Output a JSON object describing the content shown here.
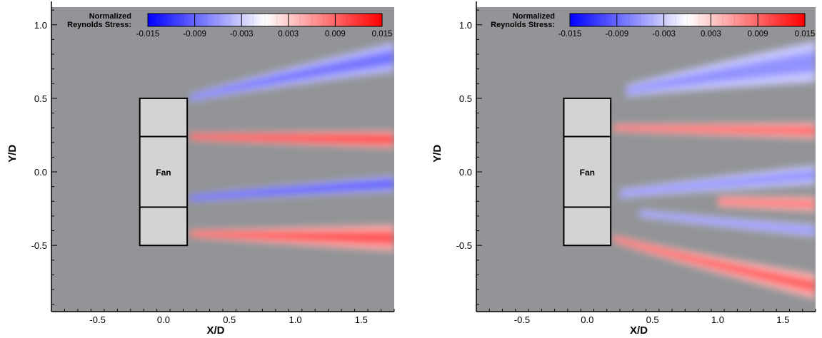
{
  "chart_data": [
    {
      "type": "heatmap",
      "title": "",
      "xlabel": "X/D",
      "ylabel": "Y/D",
      "xlim": [
        -0.85,
        1.75
      ],
      "ylim": [
        -0.95,
        1.12
      ],
      "xticks": [
        -0.5,
        0.0,
        0.5,
        1.0,
        1.5
      ],
      "yticks": [
        -0.5,
        0.0,
        0.5,
        1.0
      ],
      "xtick_labels": [
        "-0.5",
        "0.0",
        "0.5",
        "1.0",
        "1.5"
      ],
      "ytick_labels": [
        "-0.5",
        "0.0",
        "0.5",
        "1.0"
      ],
      "legend": {
        "title_lines": [
          "Normalized",
          "Reynolds Stress:"
        ],
        "placement": "top",
        "range": [
          -0.015,
          0.015
        ],
        "ticks": [
          -0.015,
          -0.009,
          -0.003,
          0.003,
          0.009,
          0.015
        ],
        "tick_labels": [
          "-0.015",
          "-0.009",
          "-0.003",
          "0.003",
          "0.009",
          "0.015"
        ],
        "colormap": [
          "#0000ff",
          "#ffffff",
          "#ff0000"
        ]
      },
      "fan": {
        "label": "Fan",
        "x_range": [
          -0.18,
          0.18
        ],
        "y_range": [
          -0.5,
          0.5
        ],
        "dividers_y": [
          -0.24,
          0.24
        ],
        "fill_color": "#d3d3d3"
      },
      "field": {
        "background_value": 0.0,
        "features": [
          {
            "value": -0.009,
            "x0": 0.2,
            "x1": 1.75,
            "y_start": 0.5,
            "y_end": 0.78,
            "width_start": 0.05,
            "width_end": 0.2
          },
          {
            "value": 0.012,
            "x0": 0.2,
            "x1": 1.75,
            "y_start": 0.24,
            "y_end": 0.22,
            "width_start": 0.05,
            "width_end": 0.12
          },
          {
            "value": -0.011,
            "x0": 0.2,
            "x1": 1.75,
            "y_start": -0.18,
            "y_end": -0.08,
            "width_start": 0.05,
            "width_end": 0.11
          },
          {
            "value": 0.011,
            "x0": 0.2,
            "x1": 1.75,
            "y_start": -0.42,
            "y_end": -0.45,
            "width_start": 0.05,
            "width_end": 0.18
          }
        ]
      }
    },
    {
      "type": "heatmap",
      "title": "",
      "xlabel": "X/D",
      "ylabel": "Y/D",
      "xlim": [
        -0.85,
        1.75
      ],
      "ylim": [
        -0.95,
        1.12
      ],
      "xticks": [
        -0.5,
        0.0,
        0.5,
        1.0,
        1.5
      ],
      "yticks": [
        -0.5,
        0.0,
        0.5,
        1.0
      ],
      "xtick_labels": [
        "-0.5",
        "0.0",
        "0.5",
        "1.0",
        "1.5"
      ],
      "ytick_labels": [
        "-0.5",
        "0.0",
        "0.5",
        "1.0"
      ],
      "legend": {
        "title_lines": [
          "Normalized",
          "Reynolds Stress:"
        ],
        "placement": "top",
        "range": [
          -0.015,
          0.015
        ],
        "ticks": [
          -0.015,
          -0.009,
          -0.003,
          0.003,
          0.009,
          0.015
        ],
        "tick_labels": [
          "-0.015",
          "-0.009",
          "-0.003",
          "0.003",
          "0.009",
          "0.015"
        ],
        "colormap": [
          "#0000ff",
          "#ffffff",
          "#ff0000"
        ]
      },
      "fan": {
        "label": "Fan",
        "x_range": [
          -0.18,
          0.18
        ],
        "y_range": [
          -0.5,
          0.5
        ],
        "dividers_y": [
          -0.24,
          0.24
        ],
        "fill_color": "#d3d3d3"
      },
      "field": {
        "background_value": 0.0,
        "features": [
          {
            "value": -0.007,
            "x0": 0.3,
            "x1": 1.75,
            "y_start": 0.55,
            "y_end": 0.75,
            "width_start": 0.08,
            "width_end": 0.28
          },
          {
            "value": 0.01,
            "x0": 0.2,
            "x1": 1.75,
            "y_start": 0.3,
            "y_end": 0.28,
            "width_start": 0.05,
            "width_end": 0.11
          },
          {
            "value": -0.007,
            "x0": 0.25,
            "x1": 1.75,
            "y_start": -0.15,
            "y_end": -0.02,
            "width_start": 0.06,
            "width_end": 0.13
          },
          {
            "value": 0.009,
            "x0": 1.0,
            "x1": 1.75,
            "y_start": -0.2,
            "y_end": -0.22,
            "width_start": 0.07,
            "width_end": 0.1
          },
          {
            "value": -0.007,
            "x0": 0.4,
            "x1": 1.75,
            "y_start": -0.28,
            "y_end": -0.4,
            "width_start": 0.05,
            "width_end": 0.08
          },
          {
            "value": 0.01,
            "x0": 0.2,
            "x1": 1.75,
            "y_start": -0.45,
            "y_end": -0.78,
            "width_start": 0.05,
            "width_end": 0.17
          }
        ]
      }
    }
  ]
}
